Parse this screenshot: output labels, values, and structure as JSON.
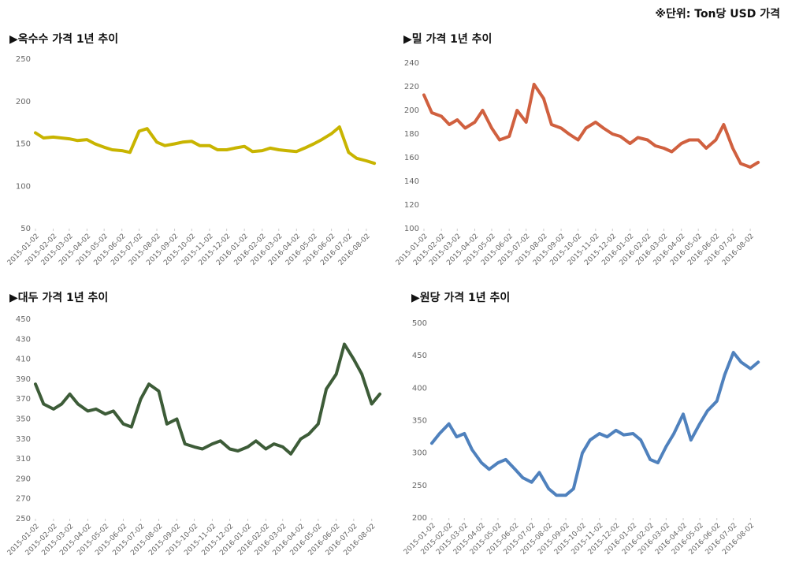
{
  "note": "※단위: Ton당 USD 가격",
  "chart_data": [
    {
      "type": "line",
      "title": "▶옥수수 가격 1년 추이",
      "x": [
        "2015-01-02",
        "2015-01-16",
        "2015-02-02",
        "2015-02-16",
        "2015-03-02",
        "2015-03-16",
        "2015-04-02",
        "2015-04-16",
        "2015-05-02",
        "2015-05-16",
        "2015-06-02",
        "2015-06-16",
        "2015-07-02",
        "2015-07-16",
        "2015-08-02",
        "2015-08-16",
        "2015-09-02",
        "2015-09-16",
        "2015-10-02",
        "2015-10-16",
        "2015-11-02",
        "2015-11-16",
        "2015-12-02",
        "2015-12-16",
        "2016-01-02",
        "2016-01-16",
        "2016-02-02",
        "2016-02-16",
        "2016-03-02",
        "2016-03-16",
        "2016-04-02",
        "2016-04-16",
        "2016-05-02",
        "2016-05-16",
        "2016-06-02",
        "2016-06-16",
        "2016-07-02",
        "2016-07-16",
        "2016-08-02",
        "2016-08-16"
      ],
      "series": [
        {
          "color": "#c8b400",
          "values": [
            163,
            157,
            158,
            157,
            156,
            154,
            155,
            150,
            146,
            143,
            142,
            140,
            165,
            168,
            152,
            148,
            150,
            152,
            153,
            148,
            148,
            143,
            143,
            145,
            147,
            141,
            142,
            145,
            143,
            142,
            141,
            145,
            150,
            155,
            162,
            170,
            140,
            133,
            130,
            127
          ]
        }
      ],
      "xlim": [
        "2015-01-02",
        "2016-08-20"
      ],
      "xticks": [
        "2015-01-02",
        "2015-02-02",
        "2015-03-02",
        "2015-04-02",
        "2015-05-02",
        "2015-06-02",
        "2015-07-02",
        "2015-08-02",
        "2015-09-02",
        "2015-10-02",
        "2015-11-02",
        "2015-12-02",
        "2016-01-02",
        "2016-02-02",
        "2016-03-02",
        "2016-04-02",
        "2016-05-02",
        "2016-06-02",
        "2016-07-02",
        "2016-08-02"
      ],
      "ylim": [
        50,
        250
      ],
      "yticks": [
        50,
        100,
        150,
        200,
        250
      ]
    },
    {
      "type": "line",
      "title": "▶밀 가격 1년 추이",
      "x": [
        "2015-01-02",
        "2015-01-16",
        "2015-02-02",
        "2015-02-16",
        "2015-03-02",
        "2015-03-16",
        "2015-04-02",
        "2015-04-16",
        "2015-05-02",
        "2015-05-16",
        "2015-06-02",
        "2015-06-16",
        "2015-07-02",
        "2015-07-16",
        "2015-08-02",
        "2015-08-16",
        "2015-09-02",
        "2015-09-16",
        "2015-10-02",
        "2015-10-16",
        "2015-11-02",
        "2015-11-16",
        "2015-12-02",
        "2015-12-16",
        "2016-01-02",
        "2016-01-16",
        "2016-02-02",
        "2016-02-16",
        "2016-03-02",
        "2016-03-16",
        "2016-04-02",
        "2016-04-16",
        "2016-05-02",
        "2016-05-16",
        "2016-06-02",
        "2016-06-16",
        "2016-07-02",
        "2016-07-16",
        "2016-08-02",
        "2016-08-16"
      ],
      "series": [
        {
          "color": "#d0603f",
          "values": [
            213,
            198,
            195,
            188,
            192,
            185,
            190,
            200,
            185,
            175,
            178,
            200,
            190,
            222,
            210,
            188,
            185,
            180,
            175,
            185,
            190,
            185,
            180,
            178,
            172,
            177,
            175,
            170,
            168,
            165,
            172,
            175,
            175,
            168,
            175,
            188,
            168,
            155,
            152,
            156
          ]
        }
      ],
      "xlim": [
        "2015-01-02",
        "2016-08-20"
      ],
      "xticks": [
        "2015-01-02",
        "2015-02-02",
        "2015-03-02",
        "2015-04-02",
        "2015-05-02",
        "2015-06-02",
        "2015-07-02",
        "2015-08-02",
        "2015-09-02",
        "2015-10-02",
        "2015-11-02",
        "2015-12-02",
        "2016-01-02",
        "2016-02-02",
        "2016-03-02",
        "2016-04-02",
        "2016-05-02",
        "2016-06-02",
        "2016-07-02",
        "2016-08-02"
      ],
      "ylim": [
        100,
        240
      ],
      "yticks": [
        100,
        120,
        140,
        160,
        180,
        200,
        220,
        240
      ]
    },
    {
      "type": "line",
      "title": "▶대두 가격 1년 추이",
      "x": [
        "2015-01-02",
        "2015-01-16",
        "2015-02-02",
        "2015-02-16",
        "2015-03-02",
        "2015-03-16",
        "2015-04-02",
        "2015-04-16",
        "2015-05-02",
        "2015-05-16",
        "2015-06-02",
        "2015-06-16",
        "2015-07-02",
        "2015-07-16",
        "2015-08-02",
        "2015-08-16",
        "2015-09-02",
        "2015-09-16",
        "2015-10-02",
        "2015-10-16",
        "2015-11-02",
        "2015-11-16",
        "2015-12-02",
        "2015-12-16",
        "2016-01-02",
        "2016-01-16",
        "2016-02-02",
        "2016-02-16",
        "2016-03-02",
        "2016-03-16",
        "2016-04-02",
        "2016-04-16",
        "2016-05-02",
        "2016-05-16",
        "2016-06-02",
        "2016-06-16",
        "2016-07-02",
        "2016-07-16",
        "2016-08-02",
        "2016-08-16"
      ],
      "series": [
        {
          "color": "#3d5c38",
          "values": [
            385,
            365,
            360,
            365,
            375,
            365,
            358,
            360,
            355,
            358,
            345,
            342,
            370,
            385,
            378,
            345,
            350,
            325,
            322,
            320,
            325,
            328,
            320,
            318,
            322,
            328,
            320,
            325,
            322,
            315,
            330,
            335,
            345,
            380,
            395,
            425,
            410,
            395,
            365,
            375
          ]
        }
      ],
      "xlim": [
        "2015-01-02",
        "2016-08-20"
      ],
      "xticks": [
        "2015-01-02",
        "2015-02-02",
        "2015-03-02",
        "2015-04-02",
        "2015-05-02",
        "2015-06-02",
        "2015-07-02",
        "2015-08-02",
        "2015-09-02",
        "2015-10-02",
        "2015-11-02",
        "2015-12-02",
        "2016-01-02",
        "2016-02-02",
        "2016-03-02",
        "2016-04-02",
        "2016-05-02",
        "2016-06-02",
        "2016-07-02",
        "2016-08-02"
      ],
      "ylim": [
        250,
        450
      ],
      "yticks": [
        250,
        270,
        290,
        310,
        330,
        350,
        370,
        390,
        410,
        430,
        450
      ]
    },
    {
      "type": "line",
      "title": "▶원당 가격 1년 추이",
      "x": [
        "2015-01-02",
        "2015-01-16",
        "2015-02-02",
        "2015-02-16",
        "2015-03-02",
        "2015-03-16",
        "2015-04-02",
        "2015-04-16",
        "2015-05-02",
        "2015-05-16",
        "2015-06-02",
        "2015-06-16",
        "2015-07-02",
        "2015-07-16",
        "2015-08-02",
        "2015-08-16",
        "2015-09-02",
        "2015-09-16",
        "2015-10-02",
        "2015-10-16",
        "2015-11-02",
        "2015-11-16",
        "2015-12-02",
        "2015-12-16",
        "2016-01-02",
        "2016-01-16",
        "2016-02-02",
        "2016-02-16",
        "2016-03-02",
        "2016-03-16",
        "2016-04-02",
        "2016-04-16",
        "2016-05-02",
        "2016-05-16",
        "2016-06-02",
        "2016-06-16",
        "2016-07-02",
        "2016-07-16",
        "2016-08-02",
        "2016-08-16"
      ],
      "series": [
        {
          "color": "#4f81bd",
          "values": [
            315,
            330,
            345,
            325,
            330,
            305,
            285,
            275,
            285,
            290,
            275,
            262,
            255,
            270,
            245,
            235,
            235,
            245,
            300,
            320,
            330,
            325,
            335,
            328,
            330,
            320,
            290,
            285,
            310,
            330,
            360,
            320,
            345,
            365,
            380,
            420,
            455,
            440,
            430,
            440
          ]
        }
      ],
      "xlim": [
        "2015-01-02",
        "2016-08-20"
      ],
      "xticks": [
        "2015-01-02",
        "2015-02-02",
        "2015-03-02",
        "2015-04-02",
        "2015-05-02",
        "2015-06-02",
        "2015-07-02",
        "2015-08-02",
        "2015-09-02",
        "2015-10-02",
        "2015-11-02",
        "2015-12-02",
        "2016-01-02",
        "2016-02-02",
        "2016-03-02",
        "2016-04-02",
        "2016-05-02",
        "2016-06-02",
        "2016-07-02",
        "2016-08-02"
      ],
      "ylim": [
        200,
        500
      ],
      "yticks": [
        200,
        250,
        300,
        350,
        400,
        450,
        500
      ]
    }
  ]
}
